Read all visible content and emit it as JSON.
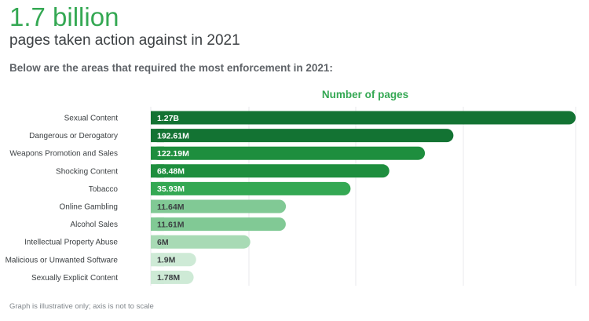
{
  "header": {
    "headline": "1.7 billion",
    "subhead": "pages taken action against in 2021",
    "intro": "Below are the areas that required the most enforcement in 2021:"
  },
  "footnote": "Graph is illustrative only; axis is not to scale",
  "chart_data": {
    "type": "bar",
    "orientation": "horizontal",
    "title": "Number of pages",
    "xlabel": "",
    "ylabel": "",
    "axis_scaled": false,
    "grid": true,
    "categories": [
      "Sexual Content",
      "Dangerous or Derogatory",
      "Weapons Promotion and Sales",
      "Shocking Content",
      "Tobacco",
      "Online Gambling",
      "Alcohol Sales",
      "Intellectual Property Abuse",
      "Malicious or Unwanted Software",
      "Sexually Explicit Content"
    ],
    "values": [
      1270000000,
      192610000,
      122190000,
      68480000,
      35930000,
      11640000,
      11610000,
      6000000,
      1900000,
      1780000
    ],
    "value_labels": [
      "1.27B",
      "192.61M",
      "122.19M",
      "68.48M",
      "35.93M",
      "11.64M",
      "11.61M",
      "6M",
      "1.9M",
      "1.78M"
    ],
    "bar_colors": [
      "#137333",
      "#137333",
      "#1e8e3e",
      "#1e8e3e",
      "#34a853",
      "#81c995",
      "#81c995",
      "#a8dab5",
      "#ceead6",
      "#ceead6"
    ],
    "label_colors": [
      "#ffffff",
      "#ffffff",
      "#ffffff",
      "#ffffff",
      "#ffffff",
      "#3c4043",
      "#3c4043",
      "#3c4043",
      "#3c4043",
      "#3c4043"
    ]
  }
}
